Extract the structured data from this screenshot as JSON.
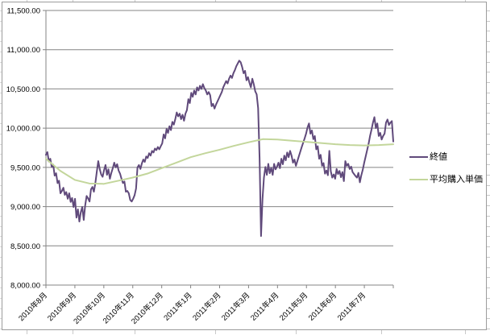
{
  "chart_data": {
    "type": "line",
    "title": "",
    "grid": true,
    "legend_position": "right",
    "x_axis": {
      "labels": [
        "2010年8月",
        "2010年9月",
        "2010年10月",
        "2010年11月",
        "2010年12月",
        "2011年1月",
        "2011年2月",
        "2011年3月",
        "2011年4月",
        "2011年5月",
        "2011年6月",
        "2011年7月"
      ]
    },
    "y_axis": {
      "min": 8000,
      "max": 11500,
      "step": 500,
      "tick_labels": [
        "8,000.00",
        "8,500.00",
        "9,000.00",
        "9,500.00",
        "10,000.00",
        "10,500.00",
        "11,000.00",
        "11,500.00"
      ]
    },
    "series": [
      {
        "name": "終値",
        "color": "#604A7B",
        "values": [
          9660,
          9695,
          9575,
          9610,
          9505,
          9535,
          9395,
          9425,
          9300,
          9330,
          9170,
          9200,
          9240,
          9150,
          9185,
          9100,
          9170,
          9060,
          9110,
          8995,
          9100,
          8860,
          8965,
          8810,
          8930,
          8995,
          8830,
          9015,
          9135,
          9105,
          9065,
          9220,
          9250,
          9190,
          9300,
          9445,
          9580,
          9480,
          9410,
          9380,
          9465,
          9530,
          9405,
          9475,
          9355,
          9430,
          9490,
          9560,
          9500,
          9540,
          9460,
          9420,
          9355,
          9300,
          9320,
          9190,
          9200,
          9170,
          9085,
          9065,
          9100,
          9145,
          9230,
          9500,
          9530,
          9480,
          9550,
          9600,
          9570,
          9640,
          9620,
          9680,
          9650,
          9710,
          9690,
          9740,
          9720,
          9760,
          9730,
          9770,
          9806,
          9920,
          9870,
          9990,
          9940,
          10025,
          9975,
          10080,
          10045,
          10115,
          10200,
          10150,
          10185,
          10115,
          10170,
          10095,
          10185,
          10230,
          10370,
          10320,
          10450,
          10400,
          10480,
          10430,
          10520,
          10480,
          10540,
          10500,
          10560,
          10510,
          10480,
          10430,
          10460,
          10420,
          10280,
          10310,
          10250,
          10300,
          10340,
          10380,
          10420,
          10460,
          10520,
          10560,
          10600,
          10570,
          10630,
          10670,
          10640,
          10700,
          10740,
          10790,
          10825,
          10860,
          10840,
          10780,
          10700,
          10730,
          10610,
          10650,
          10580,
          10520,
          10630,
          10560,
          10470,
          10430,
          10255,
          9620,
          8625,
          9095,
          9370,
          9505,
          9405,
          9545,
          9425,
          9495,
          9405,
          9545,
          9475,
          9510,
          9560,
          9490,
          9610,
          9540,
          9650,
          9590,
          9690,
          9630,
          9710,
          9650,
          9560,
          9600,
          9520,
          9580,
          9640,
          9700,
          9760,
          9815,
          9870,
          9930,
          10010,
          10060,
          9930,
          9970,
          9860,
          9900,
          9730,
          9770,
          9610,
          9660,
          9520,
          9555,
          9420,
          9460,
          9400,
          9710,
          9450,
          9370,
          9410,
          9355,
          9480,
          9415,
          9455,
          9375,
          9440,
          9325,
          9580,
          9520,
          9545,
          9480,
          9510,
          9440,
          9415,
          9390,
          9370,
          9430,
          9310,
          9400,
          9470,
          9560,
          9640,
          9720,
          9800,
          9900,
          9980,
          10070,
          10140,
          10000,
          10060,
          9900,
          9940,
          9855,
          9900,
          9930,
          10070,
          10110,
          10040,
          10070,
          10090,
          9830
        ]
      },
      {
        "name": "平均購入単価",
        "color": "#C3D69B",
        "values": [
          9610,
          9455,
          9340,
          9295,
          9290,
          9330,
          9370,
          9420,
          9490,
          9560,
          9630,
          9680,
          9725,
          9775,
          9820,
          9860,
          9855,
          9840,
          9825,
          9810,
          9795,
          9785,
          9780,
          9785,
          9795
        ]
      }
    ]
  },
  "colors": {
    "gridline": "#848484",
    "axis": "#848484",
    "chart_border": "#9c9c9c",
    "sheet_line": "#c9c9c9",
    "text": "#000000"
  }
}
